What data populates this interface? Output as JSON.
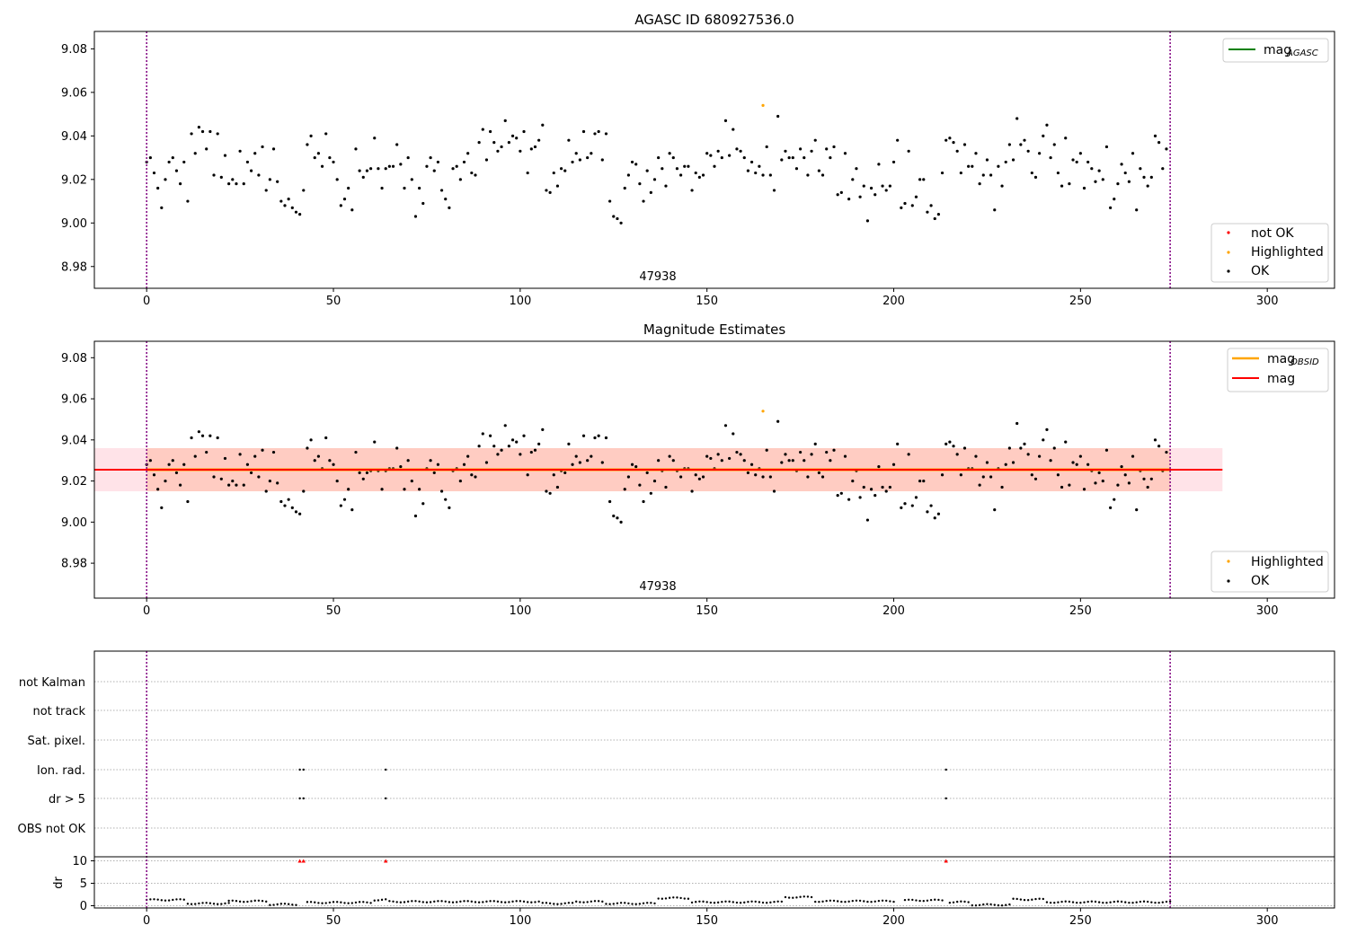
{
  "chart_data": [
    {
      "type": "scatter",
      "title": "AGASC ID 680927536.0",
      "xlim": [
        -14,
        318
      ],
      "ylim": [
        8.97,
        9.088
      ],
      "x_ticks": [
        0,
        50,
        100,
        150,
        200,
        250,
        300
      ],
      "y_ticks": [
        8.98,
        9.0,
        9.02,
        9.04,
        9.06,
        9.08
      ],
      "y_tick_labels": [
        "8.98",
        "9.00",
        "9.02",
        "9.04",
        "9.06",
        "9.08"
      ],
      "vlines": [
        0,
        274
      ],
      "annotation": {
        "text": "47938",
        "x": 137,
        "y": 8.9735
      },
      "legend_lines": [
        {
          "label": "mag",
          "sub": "AGASC",
          "color": "#008000"
        }
      ],
      "legend_points": [
        {
          "label": "not OK",
          "color": "#ff0000"
        },
        {
          "label": "Highlighted",
          "color": "#ffa500"
        },
        {
          "label": "OK",
          "color": "#000000"
        }
      ],
      "highlighted": [
        {
          "x": 165,
          "y": 9.054
        }
      ],
      "series_ok_y": [
        9.028,
        9.03,
        9.023,
        9.016,
        9.007,
        9.02,
        9.028,
        9.03,
        9.024,
        9.018,
        9.028,
        9.01,
        9.041,
        9.032,
        9.044,
        9.042,
        9.034,
        9.042,
        9.022,
        9.041,
        9.021,
        9.031,
        9.018,
        9.02,
        9.018,
        9.033,
        9.018,
        9.028,
        9.024,
        9.032,
        9.022,
        9.035,
        9.015,
        9.02,
        9.034,
        9.019,
        9.01,
        9.008,
        9.011,
        9.007,
        9.005,
        9.004,
        9.015,
        9.036,
        9.04,
        9.03,
        9.032,
        9.026,
        9.041,
        9.03,
        9.028,
        9.02,
        9.008,
        9.011,
        9.016,
        9.006,
        9.034,
        9.024,
        9.021,
        9.024,
        9.025,
        9.039,
        9.025,
        9.016,
        9.025,
        9.026,
        9.026,
        9.036,
        9.027,
        9.016,
        9.03,
        9.02,
        9.003,
        9.016,
        9.009,
        9.026,
        9.03,
        9.024,
        9.028,
        9.015,
        9.011,
        9.007,
        9.025,
        9.026,
        9.02,
        9.028,
        9.032,
        9.023,
        9.022,
        9.037,
        9.043,
        9.029,
        9.042,
        9.037,
        9.033,
        9.035,
        9.047,
        9.037,
        9.04,
        9.039,
        9.033,
        9.042,
        9.023,
        9.034,
        9.035,
        9.038,
        9.045,
        9.015,
        9.014,
        9.023,
        9.017,
        9.025,
        9.024,
        9.038,
        9.028,
        9.032,
        9.029,
        9.042,
        9.03,
        9.032,
        9.041,
        9.042,
        9.029,
        9.041,
        9.01,
        9.003,
        9.002,
        9.0,
        9.016,
        9.022,
        9.028,
        9.027,
        9.018,
        9.01,
        9.024,
        9.014,
        9.02,
        9.03,
        9.025,
        9.017,
        9.032,
        9.03,
        9.025,
        9.022,
        9.026,
        9.026,
        9.015,
        9.023,
        9.021,
        9.022,
        9.032,
        9.031,
        9.026,
        9.033,
        9.03,
        9.047,
        9.031,
        9.043,
        9.034,
        9.033,
        9.03,
        9.024,
        9.028,
        9.023,
        9.026,
        9.022,
        9.035,
        9.022,
        9.015,
        9.049,
        9.029,
        9.033,
        9.03,
        9.03,
        9.025,
        9.034,
        9.03,
        9.022,
        9.033,
        9.038,
        9.024,
        9.022,
        9.034,
        9.03,
        9.035,
        9.013,
        9.014,
        9.032,
        9.011,
        9.02,
        9.025,
        9.012,
        9.017,
        9.001,
        9.016,
        9.013,
        9.027,
        9.017,
        9.015,
        9.017,
        9.028,
        9.038,
        9.007,
        9.009,
        9.033,
        9.008,
        9.012,
        9.02,
        9.02,
        9.005,
        9.008,
        9.002,
        9.004,
        9.023,
        9.038,
        9.039,
        9.037,
        9.033,
        9.023,
        9.036,
        9.026,
        9.026,
        9.032,
        9.018,
        9.022,
        9.029,
        9.022,
        9.006,
        9.026,
        9.017,
        9.028,
        9.036,
        9.029,
        9.048,
        9.036,
        9.038,
        9.033,
        9.023,
        9.021,
        9.032,
        9.04,
        9.045,
        9.03,
        9.036,
        9.023,
        9.017,
        9.039,
        9.018,
        9.029,
        9.028,
        9.032,
        9.016,
        9.028,
        9.025,
        9.019,
        9.024,
        9.02,
        9.035,
        9.007,
        9.011,
        9.018,
        9.027,
        9.023,
        9.019,
        9.032,
        9.006,
        9.025,
        9.021,
        9.017,
        9.021,
        9.04,
        9.037,
        9.025,
        9.034
      ]
    },
    {
      "type": "scatter",
      "title": "Magnitude Estimates",
      "xlim": [
        -14,
        318
      ],
      "ylim": [
        8.963,
        9.088
      ],
      "x_ticks": [
        0,
        50,
        100,
        150,
        200,
        250,
        300
      ],
      "y_ticks": [
        8.98,
        9.0,
        9.02,
        9.04,
        9.06,
        9.08
      ],
      "y_tick_labels": [
        "8.98",
        "9.00",
        "9.02",
        "9.04",
        "9.06",
        "9.08"
      ],
      "vlines": [
        0,
        274
      ],
      "annotation": {
        "text": "47938",
        "x": 137,
        "y": 8.9655
      },
      "mag_line": {
        "y": 9.0255,
        "x_range": [
          -14,
          288
        ],
        "color": "#ff0000"
      },
      "mag_band": {
        "y_range": [
          9.015,
          9.036
        ],
        "x_range": [
          -14,
          288
        ],
        "color": "#ffc0cb"
      },
      "obsid_line": {
        "y": 9.0255,
        "x_range": [
          0,
          274
        ],
        "color": "#ffa500"
      },
      "obsid_band": {
        "y_range": [
          9.015,
          9.036
        ],
        "x_range": [
          0,
          274
        ],
        "color": "#ffa07a"
      },
      "legend_lines": [
        {
          "label": "mag",
          "sub": "OBSID",
          "color": "#ffa500"
        },
        {
          "label": "mag",
          "sub": "",
          "color": "#ff0000"
        }
      ],
      "legend_points": [
        {
          "label": "Highlighted",
          "color": "#ffa500"
        },
        {
          "label": "OK",
          "color": "#000000"
        }
      ],
      "highlighted": [
        {
          "x": 165,
          "y": 9.054
        }
      ],
      "series_ok_ref": "same as panel 1"
    },
    {
      "type": "scatter",
      "xlim": [
        -14,
        318
      ],
      "x_ticks": [
        0,
        50,
        100,
        150,
        200,
        250,
        300
      ],
      "vlines": [
        0,
        274
      ],
      "flag_rows": [
        "not Kalman",
        "not track",
        "Sat. pixel.",
        "Ion. rad.",
        "dr > 5",
        "OBS not OK"
      ],
      "flags": {
        "Ion. rad.": [
          41,
          42,
          64,
          214
        ],
        "dr > 5": [
          41,
          42,
          64,
          214
        ]
      },
      "dr_ylabel": "dr",
      "dr_ylim": [
        -0.5,
        10.5
      ],
      "dr_ticks": [
        0,
        5,
        10
      ],
      "dr_tick_labels": [
        "0",
        "5",
        "10"
      ],
      "dr_outliers": [
        41,
        42,
        64,
        214
      ],
      "dr_segments": [
        {
          "from": 0,
          "to": 10,
          "y": 1.3
        },
        {
          "from": 11,
          "to": 22,
          "y": 0.5
        },
        {
          "from": 22,
          "to": 32,
          "y": 1.0
        },
        {
          "from": 33,
          "to": 40,
          "y": 0.3
        },
        {
          "from": 43,
          "to": 60,
          "y": 0.7
        },
        {
          "from": 61,
          "to": 64,
          "y": 1.3
        },
        {
          "from": 65,
          "to": 105,
          "y": 0.9
        },
        {
          "from": 106,
          "to": 114,
          "y": 0.5
        },
        {
          "from": 115,
          "to": 122,
          "y": 0.9
        },
        {
          "from": 123,
          "to": 136,
          "y": 0.5
        },
        {
          "from": 137,
          "to": 145,
          "y": 1.7
        },
        {
          "from": 146,
          "to": 170,
          "y": 0.8
        },
        {
          "from": 171,
          "to": 178,
          "y": 1.9
        },
        {
          "from": 179,
          "to": 200,
          "y": 1.0
        },
        {
          "from": 203,
          "to": 213,
          "y": 1.2
        },
        {
          "from": 215,
          "to": 220,
          "y": 0.8
        },
        {
          "from": 221,
          "to": 231,
          "y": 0.2
        },
        {
          "from": 232,
          "to": 240,
          "y": 1.4
        },
        {
          "from": 241,
          "to": 274,
          "y": 0.8
        }
      ]
    }
  ]
}
